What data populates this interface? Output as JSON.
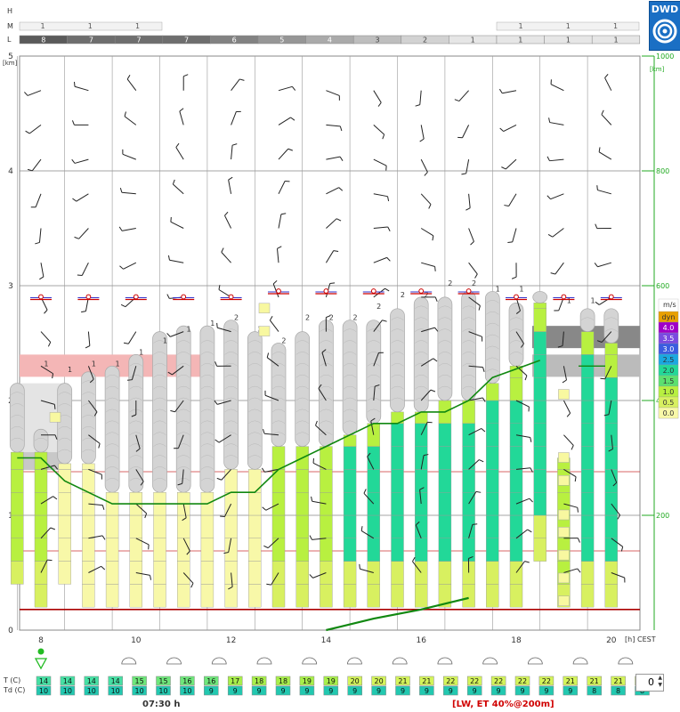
{
  "logo": {
    "text": "DWD"
  },
  "footer": {
    "time": "07:30 h",
    "info": "[LW, ET  40%@200m]"
  },
  "stepper": {
    "value": "0"
  },
  "colors": {
    "cloud": "#d4d4d4",
    "cloud_edge": "#a8a8a8",
    "green_line": "#118811",
    "red_line": "#cc3333",
    "low_layer": "#f4b6b6",
    "axis_green": "#22aa22"
  },
  "chart_data": {
    "type": "meteogram",
    "units": {
      "left_axis": "[km]",
      "right_axis": "[km]",
      "x_unit": "[h]",
      "timezone": "CEST"
    },
    "x_ticks": [
      8,
      10,
      12,
      14,
      16,
      18,
      20
    ],
    "y_ticks_left": [
      0,
      1,
      2,
      3,
      4,
      5
    ],
    "y_ticks_right": [
      200,
      400,
      600,
      800,
      1000
    ],
    "cloud_rows": {
      "labels": [
        "H",
        "M",
        "L"
      ],
      "M": [
        {
          "from": 0,
          "to": 3,
          "values": [
            "1",
            "1",
            "1"
          ]
        },
        {
          "from": 21,
          "to": 24,
          "values": [
            "1",
            "1",
            "1"
          ]
        }
      ],
      "L": [
        "8",
        "7",
        "7",
        "7",
        "6",
        "5",
        "4",
        "3",
        "2",
        "1",
        "1",
        "1",
        "1"
      ]
    },
    "updraft_legend": {
      "title": "m/s",
      "labels": [
        "dyn",
        "4.0",
        "3.5",
        "3.0",
        "2.5",
        "2.0",
        "1.5",
        "1.0",
        "0.5",
        "0.0"
      ]
    },
    "times": [
      7.5,
      8,
      8.5,
      9,
      9.5,
      10,
      10.5,
      11,
      11.5,
      12,
      12.5,
      13,
      13.5,
      14,
      14.5,
      15,
      15.5,
      16,
      16.5,
      17,
      17.5,
      18,
      18.5,
      19,
      19.5,
      20
    ],
    "columns": [
      {
        "base": 0.4,
        "top": 1.55,
        "cloud_top": 2.15
      },
      {
        "base": 0.2,
        "top": 1.55,
        "cloud_top": 1.75
      },
      {
        "base": 0.4,
        "top": 1.45,
        "cloud_top": 2.15
      },
      {
        "base": 0.2,
        "top": 1.45,
        "cloud_top": 2.25
      },
      {
        "base": 0.2,
        "top": 1.2,
        "cloud_top": 2.3
      },
      {
        "base": 0.2,
        "top": 1.2,
        "cloud_top": 2.4
      },
      {
        "base": 0.2,
        "top": 1.2,
        "cloud_top": 2.6
      },
      {
        "base": 0.2,
        "top": 1.2,
        "cloud_top": 2.65
      },
      {
        "base": 0.2,
        "top": 1.2,
        "cloud_top": 2.65
      },
      {
        "base": 0.2,
        "top": 1.4,
        "cloud_top": 2.7
      },
      {
        "base": 0.2,
        "top": 1.4,
        "cloud_top": 2.6
      },
      {
        "base": 0.2,
        "top": 1.6,
        "cloud_top": 2.5
      },
      {
        "base": 0.2,
        "top": 1.6,
        "cloud_top": 2.6
      },
      {
        "base": 0.2,
        "top": 1.6,
        "cloud_top": 2.7
      },
      {
        "base": 0.2,
        "top": 1.7,
        "cloud_top": 2.7
      },
      {
        "base": 0.2,
        "top": 1.8,
        "cloud_top": 2.7
      },
      {
        "base": 0.2,
        "top": 1.9,
        "cloud_top": 2.8
      },
      {
        "base": 0.2,
        "top": 1.9,
        "cloud_top": 2.9
      },
      {
        "base": 0.2,
        "top": 2.0,
        "cloud_top": 2.9
      },
      {
        "base": 0.2,
        "top": 2.0,
        "cloud_top": 2.95
      },
      {
        "base": 0.2,
        "top": 2.15,
        "cloud_top": 2.95
      },
      {
        "base": 0.2,
        "top": 2.3,
        "cloud_top": 2.85
      },
      {
        "base": 0.6,
        "top": 2.85,
        "cloud_top": 2.95
      },
      {
        "base": 0.2,
        "top": 1.5,
        "cloud_top": 1.5
      },
      {
        "base": 0.2,
        "top": 2.6,
        "cloud_top": 2.8
      },
      {
        "base": 0.2,
        "top": 2.5,
        "cloud_top": 2.8
      }
    ],
    "boundary_layer_line": {
      "x": [
        7.5,
        8,
        8.5,
        9.5,
        10,
        10.5,
        11.5,
        12,
        12.5,
        13,
        13.5,
        14,
        14.5,
        15,
        15.5,
        16,
        16.5,
        17,
        17.5,
        18.5
      ],
      "y": [
        1.5,
        1.5,
        1.3,
        1.1,
        1.1,
        1.1,
        1.1,
        1.2,
        1.2,
        1.4,
        1.5,
        1.6,
        1.7,
        1.8,
        1.8,
        1.9,
        1.9,
        2.0,
        2.2,
        2.35
      ]
    },
    "ground_line": {
      "x": [
        14,
        15,
        16,
        17
      ],
      "y": [
        0.0,
        0.1,
        0.18,
        0.28
      ]
    },
    "red_lines_km": [
      0.18,
      0.69,
      1.38
    ],
    "temperature_row": {
      "label": "T  (C)",
      "values": [
        "14",
        "14",
        "14",
        "14",
        "15",
        "15",
        "16",
        "16",
        "17",
        "18",
        "18",
        "19",
        "19",
        "20",
        "20",
        "21",
        "21",
        "22",
        "22",
        "22",
        "22",
        "22",
        "21",
        "21",
        "21",
        "21"
      ]
    },
    "dewpoint_row": {
      "label": "Td (C)",
      "values": [
        "10",
        "10",
        "10",
        "10",
        "10",
        "10",
        "10",
        "9",
        "9",
        "9",
        "9",
        "9",
        "9",
        "9",
        "9",
        "9",
        "9",
        "9",
        "9",
        "9",
        "9",
        "9",
        "9",
        "8",
        "8",
        "8"
      ]
    },
    "cloud_numbers": [
      {
        "t": 8.25,
        "y": 2.3,
        "text": "1"
      },
      {
        "t": 8.75,
        "y": 2.25,
        "text": "1"
      },
      {
        "t": 9.25,
        "y": 2.3,
        "text": "1"
      },
      {
        "t": 9.75,
        "y": 2.3,
        "text": "1"
      },
      {
        "t": 10.25,
        "y": 2.4,
        "text": "1"
      },
      {
        "t": 10.75,
        "y": 2.5,
        "text": "1"
      },
      {
        "t": 11.25,
        "y": 2.6,
        "text": "1"
      },
      {
        "t": 11.75,
        "y": 2.65,
        "text": "1"
      },
      {
        "t": 12.25,
        "y": 2.7,
        "text": "2"
      },
      {
        "t": 12.75,
        "y": 2.6,
        "text": "2"
      },
      {
        "t": 13.25,
        "y": 2.5,
        "text": "2"
      },
      {
        "t": 13.75,
        "y": 2.7,
        "text": "2"
      },
      {
        "t": 14.25,
        "y": 2.7,
        "text": "2"
      },
      {
        "t": 14.75,
        "y": 2.7,
        "text": "2"
      },
      {
        "t": 15.25,
        "y": 2.8,
        "text": "2"
      },
      {
        "t": 15.75,
        "y": 2.9,
        "text": "2"
      },
      {
        "t": 16.25,
        "y": 2.9,
        "text": "2"
      },
      {
        "t": 16.75,
        "y": 3.0,
        "text": "2"
      },
      {
        "t": 17.25,
        "y": 3.0,
        "text": "2"
      },
      {
        "t": 17.75,
        "y": 2.95,
        "text": "1"
      },
      {
        "t": 18.25,
        "y": 2.95,
        "text": "1"
      },
      {
        "t": 19.25,
        "y": 2.85,
        "text": "1"
      },
      {
        "t": 19.75,
        "y": 2.85,
        "text": "1"
      }
    ]
  }
}
